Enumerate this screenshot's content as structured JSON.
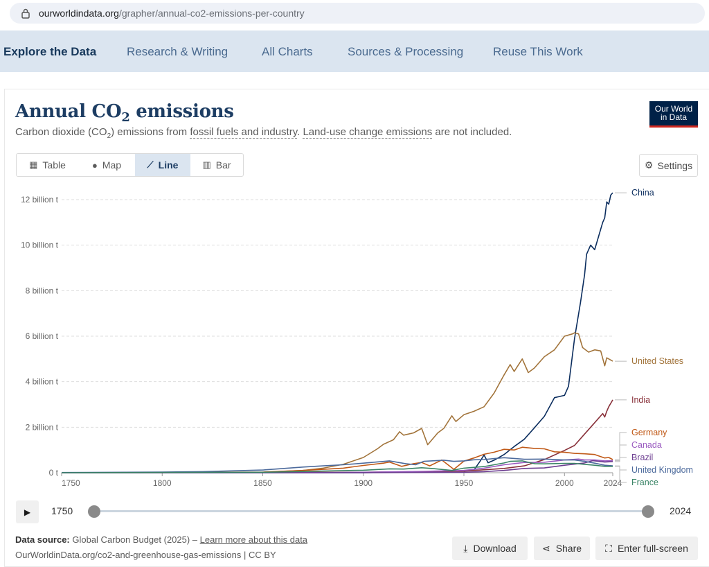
{
  "browser": {
    "url_host": "ourworldindata.org",
    "url_path": "/grapher/annual-co2-emissions-per-country"
  },
  "nav": {
    "items": [
      "Explore the Data",
      "Research & Writing",
      "All Charts",
      "Sources & Processing",
      "Reuse This Work"
    ]
  },
  "header": {
    "title_prefix": "Annual CO",
    "title_sub": "2",
    "title_suffix": " emissions",
    "subtitle_a": "Carbon dioxide (CO",
    "subtitle_sub": "2",
    "subtitle_b": ") emissions from ",
    "subtitle_link1": "fossil fuels and industry",
    "subtitle_c": ". ",
    "subtitle_link2": "Land-use change emissions",
    "subtitle_d": " are not included.",
    "logo_line1": "Our World",
    "logo_line2": "in Data"
  },
  "tabs": [
    {
      "label": "Table",
      "icon": "table-icon"
    },
    {
      "label": "Map",
      "icon": "globe-icon"
    },
    {
      "label": "Line",
      "icon": "line-chart-icon",
      "active": true
    },
    {
      "label": "Bar",
      "icon": "bar-chart-icon"
    }
  ],
  "settings_label": "Settings",
  "timeline": {
    "start": "1750",
    "end": "2024"
  },
  "footer": {
    "source_label": "Data source:",
    "source_text": " Global Carbon Budget (2025) – ",
    "source_link": "Learn more about this data",
    "source_url_text": "OurWorldinData.org/co2-and-greenhouse-gas-emissions | CC BY",
    "download_label": "Download",
    "share_label": "Share",
    "fullscreen_label": "Enter full-screen"
  },
  "chart_data": {
    "type": "line",
    "title": "Annual CO₂ emissions",
    "xlim": [
      1750,
      2024
    ],
    "ylim": [
      0,
      12
    ],
    "y_ticks": [
      {
        "v": 0,
        "label": "0 t"
      },
      {
        "v": 2,
        "label": "2 billion t"
      },
      {
        "v": 4,
        "label": "4 billion t"
      },
      {
        "v": 6,
        "label": "6 billion t"
      },
      {
        "v": 8,
        "label": "8 billion t"
      },
      {
        "v": 10,
        "label": "10 billion t"
      },
      {
        "v": 12,
        "label": "12 billion t"
      }
    ],
    "x_ticks": [
      1750,
      1800,
      1850,
      1900,
      1950,
      2000,
      2024
    ],
    "grid": "horizontal dashed",
    "series": [
      {
        "name": "China",
        "color": "#0b2d5e",
        "points": [
          [
            1750,
            0
          ],
          [
            1900,
            0
          ],
          [
            1950,
            0.08
          ],
          [
            1955,
            0.12
          ],
          [
            1958,
            0.5
          ],
          [
            1960,
            0.78
          ],
          [
            1962,
            0.44
          ],
          [
            1965,
            0.55
          ],
          [
            1970,
            0.8
          ],
          [
            1975,
            1.15
          ],
          [
            1980,
            1.47
          ],
          [
            1985,
            1.97
          ],
          [
            1990,
            2.48
          ],
          [
            1995,
            3.3
          ],
          [
            2000,
            3.4
          ],
          [
            2002,
            3.8
          ],
          [
            2005,
            5.9
          ],
          [
            2008,
            7.5
          ],
          [
            2010,
            8.7
          ],
          [
            2011,
            9.6
          ],
          [
            2013,
            10.0
          ],
          [
            2015,
            9.8
          ],
          [
            2017,
            10.4
          ],
          [
            2019,
            11.0
          ],
          [
            2020,
            11.2
          ],
          [
            2021,
            11.9
          ],
          [
            2022,
            11.8
          ],
          [
            2023,
            12.2
          ],
          [
            2024,
            12.3
          ]
        ]
      },
      {
        "name": "United States",
        "color": "#a2743b",
        "points": [
          [
            1750,
            0
          ],
          [
            1800,
            0.003
          ],
          [
            1850,
            0.02
          ],
          [
            1870,
            0.1
          ],
          [
            1880,
            0.2
          ],
          [
            1890,
            0.37
          ],
          [
            1900,
            0.67
          ],
          [
            1907,
            1.05
          ],
          [
            1910,
            1.25
          ],
          [
            1915,
            1.45
          ],
          [
            1918,
            1.8
          ],
          [
            1920,
            1.65
          ],
          [
            1925,
            1.75
          ],
          [
            1929,
            1.95
          ],
          [
            1932,
            1.23
          ],
          [
            1937,
            1.75
          ],
          [
            1940,
            1.95
          ],
          [
            1944,
            2.5
          ],
          [
            1946,
            2.25
          ],
          [
            1950,
            2.55
          ],
          [
            1955,
            2.7
          ],
          [
            1960,
            2.9
          ],
          [
            1965,
            3.5
          ],
          [
            1970,
            4.3
          ],
          [
            1973,
            4.75
          ],
          [
            1975,
            4.45
          ],
          [
            1979,
            5.0
          ],
          [
            1982,
            4.4
          ],
          [
            1985,
            4.6
          ],
          [
            1990,
            5.1
          ],
          [
            1995,
            5.4
          ],
          [
            2000,
            6.0
          ],
          [
            2004,
            6.1
          ],
          [
            2005,
            6.15
          ],
          [
            2007,
            6.1
          ],
          [
            2009,
            5.5
          ],
          [
            2012,
            5.3
          ],
          [
            2015,
            5.4
          ],
          [
            2018,
            5.35
          ],
          [
            2020,
            4.7
          ],
          [
            2021,
            5.05
          ],
          [
            2022,
            5.0
          ],
          [
            2024,
            4.9
          ]
        ]
      },
      {
        "name": "India",
        "color": "#883039",
        "points": [
          [
            1750,
            0
          ],
          [
            1900,
            0.02
          ],
          [
            1950,
            0.07
          ],
          [
            1970,
            0.19
          ],
          [
            1980,
            0.3
          ],
          [
            1990,
            0.58
          ],
          [
            2000,
            0.98
          ],
          [
            2005,
            1.2
          ],
          [
            2010,
            1.7
          ],
          [
            2015,
            2.2
          ],
          [
            2019,
            2.6
          ],
          [
            2020,
            2.45
          ],
          [
            2021,
            2.7
          ],
          [
            2022,
            2.9
          ],
          [
            2024,
            3.2
          ]
        ]
      },
      {
        "name": "Germany",
        "color": "#c05917",
        "points": [
          [
            1750,
            0
          ],
          [
            1850,
            0.03
          ],
          [
            1870,
            0.1
          ],
          [
            1890,
            0.2
          ],
          [
            1900,
            0.32
          ],
          [
            1910,
            0.42
          ],
          [
            1913,
            0.47
          ],
          [
            1919,
            0.28
          ],
          [
            1925,
            0.4
          ],
          [
            1929,
            0.45
          ],
          [
            1933,
            0.3
          ],
          [
            1939,
            0.56
          ],
          [
            1945,
            0.15
          ],
          [
            1950,
            0.51
          ],
          [
            1955,
            0.65
          ],
          [
            1960,
            0.81
          ],
          [
            1965,
            0.9
          ],
          [
            1970,
            1.03
          ],
          [
            1975,
            1.0
          ],
          [
            1979,
            1.12
          ],
          [
            1985,
            1.07
          ],
          [
            1990,
            1.05
          ],
          [
            1995,
            0.92
          ],
          [
            2000,
            0.9
          ],
          [
            2005,
            0.85
          ],
          [
            2010,
            0.83
          ],
          [
            2015,
            0.8
          ],
          [
            2020,
            0.65
          ],
          [
            2022,
            0.67
          ],
          [
            2024,
            0.58
          ]
        ]
      },
      {
        "name": "Canada",
        "color": "#9a5bc0",
        "points": [
          [
            1750,
            0
          ],
          [
            1880,
            0.005
          ],
          [
            1900,
            0.02
          ],
          [
            1930,
            0.06
          ],
          [
            1950,
            0.1
          ],
          [
            1960,
            0.2
          ],
          [
            1970,
            0.35
          ],
          [
            1980,
            0.45
          ],
          [
            1990,
            0.46
          ],
          [
            2000,
            0.56
          ],
          [
            2007,
            0.6
          ],
          [
            2010,
            0.56
          ],
          [
            2015,
            0.56
          ],
          [
            2020,
            0.52
          ],
          [
            2024,
            0.53
          ]
        ]
      },
      {
        "name": "Brazil",
        "color": "#6d3e91",
        "points": [
          [
            1750,
            0
          ],
          [
            1900,
            0.003
          ],
          [
            1950,
            0.02
          ],
          [
            1960,
            0.05
          ],
          [
            1970,
            0.1
          ],
          [
            1980,
            0.19
          ],
          [
            1990,
            0.21
          ],
          [
            2000,
            0.33
          ],
          [
            2010,
            0.43
          ],
          [
            2014,
            0.53
          ],
          [
            2020,
            0.47
          ],
          [
            2024,
            0.49
          ]
        ]
      },
      {
        "name": "United Kingdom",
        "color": "#4c6a9c",
        "points": [
          [
            1750,
            0.009
          ],
          [
            1800,
            0.03
          ],
          [
            1820,
            0.05
          ],
          [
            1850,
            0.12
          ],
          [
            1870,
            0.25
          ],
          [
            1880,
            0.3
          ],
          [
            1890,
            0.35
          ],
          [
            1900,
            0.42
          ],
          [
            1913,
            0.52
          ],
          [
            1921,
            0.4
          ],
          [
            1926,
            0.35
          ],
          [
            1930,
            0.5
          ],
          [
            1940,
            0.55
          ],
          [
            1945,
            0.5
          ],
          [
            1950,
            0.52
          ],
          [
            1955,
            0.57
          ],
          [
            1960,
            0.58
          ],
          [
            1965,
            0.62
          ],
          [
            1970,
            0.66
          ],
          [
            1980,
            0.59
          ],
          [
            1990,
            0.6
          ],
          [
            2000,
            0.56
          ],
          [
            2005,
            0.56
          ],
          [
            2010,
            0.5
          ],
          [
            2015,
            0.42
          ],
          [
            2020,
            0.33
          ],
          [
            2024,
            0.3
          ]
        ]
      },
      {
        "name": "France",
        "color": "#3a8466",
        "points": [
          [
            1750,
            0
          ],
          [
            1850,
            0.02
          ],
          [
            1900,
            0.11
          ],
          [
            1913,
            0.17
          ],
          [
            1920,
            0.16
          ],
          [
            1929,
            0.22
          ],
          [
            1935,
            0.18
          ],
          [
            1944,
            0.1
          ],
          [
            1950,
            0.2
          ],
          [
            1960,
            0.27
          ],
          [
            1970,
            0.43
          ],
          [
            1973,
            0.5
          ],
          [
            1979,
            0.52
          ],
          [
            1985,
            0.4
          ],
          [
            1990,
            0.39
          ],
          [
            2000,
            0.41
          ],
          [
            2005,
            0.41
          ],
          [
            2010,
            0.37
          ],
          [
            2015,
            0.33
          ],
          [
            2020,
            0.28
          ],
          [
            2024,
            0.28
          ]
        ]
      }
    ]
  }
}
